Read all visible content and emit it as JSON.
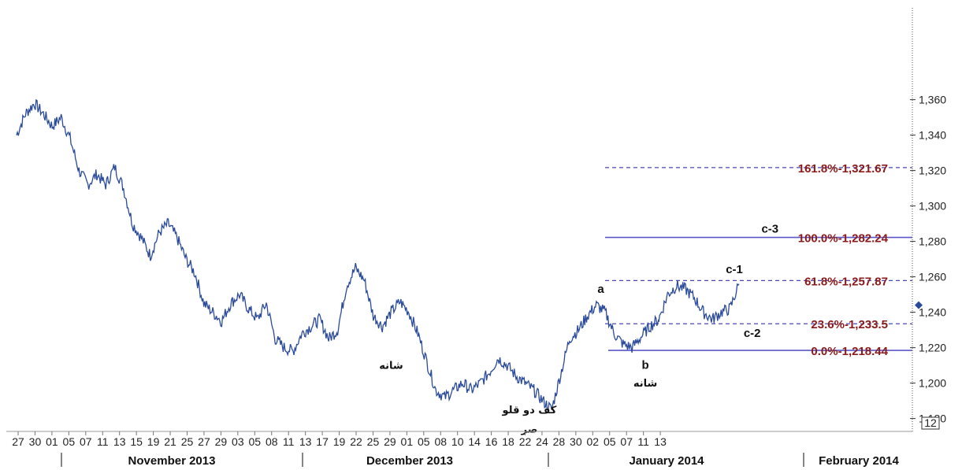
{
  "chart_data": {
    "type": "line",
    "ylim": [
      1170,
      1380
    ],
    "y_ticks": [
      1180,
      1200,
      1220,
      1240,
      1260,
      1280,
      1300,
      1320,
      1340,
      1360
    ],
    "y_tick_labels": [
      "1,180",
      "1,200",
      "1,220",
      "1,240",
      "1,260",
      "1,280",
      "1,300",
      "1,320",
      "1,340",
      "1,360"
    ],
    "current_price": 1244,
    "axis_box_label": "12",
    "x_tick_labels": [
      "27",
      "30",
      "01",
      "05",
      "07",
      "11",
      "13",
      "15",
      "19",
      "21",
      "25",
      "27",
      "29",
      "03",
      "05",
      "08",
      "11",
      "13",
      "17",
      "19",
      "22",
      "25",
      "29",
      "01",
      "05",
      "08",
      "10",
      "14",
      "16",
      "18",
      "22",
      "24",
      "28",
      "30",
      "02",
      "05",
      "07",
      "11",
      "13"
    ],
    "months": [
      "November 2013",
      "December 2013",
      "January 2014",
      "February 2014"
    ],
    "series": [
      {
        "x": [
          0,
          1,
          2,
          3,
          4,
          5,
          6,
          7,
          8,
          9,
          10,
          11,
          12,
          13,
          14,
          15,
          16,
          17,
          18,
          19,
          20,
          21,
          22,
          23,
          24,
          25,
          26,
          27,
          28,
          29,
          30,
          31,
          32,
          33,
          34,
          35,
          36,
          37,
          38,
          39,
          40,
          41,
          42,
          43,
          44,
          45,
          46,
          47,
          48,
          49,
          50,
          51,
          52,
          53,
          54,
          55,
          56,
          57,
          58,
          59,
          60,
          61,
          62,
          63,
          64,
          65,
          66,
          67,
          68,
          69,
          70,
          71,
          72
        ],
        "values": [
          1340,
          1352,
          1358,
          1352,
          1345,
          1350,
          1338,
          1320,
          1312,
          1318,
          1312,
          1322,
          1310,
          1290,
          1282,
          1272,
          1285,
          1290,
          1282,
          1270,
          1262,
          1245,
          1240,
          1235,
          1245,
          1250,
          1242,
          1236,
          1245,
          1225,
          1220,
          1218,
          1228,
          1232,
          1236,
          1225,
          1230,
          1255,
          1265,
          1258,
          1238,
          1232,
          1240,
          1246,
          1240,
          1228,
          1212,
          1196,
          1192,
          1196,
          1200,
          1196,
          1200,
          1206,
          1214,
          1210,
          1204,
          1200,
          1196,
          1190,
          1185,
          1205,
          1225,
          1230,
          1238,
          1244,
          1240,
          1228,
          1222,
          1220,
          1226,
          1232,
          1236
        ]
      },
      {
        "x": [
          72,
          73,
          74,
          75,
          76,
          77,
          78,
          79,
          80,
          81
        ],
        "values": [
          1236,
          1250,
          1255,
          1253,
          1248,
          1240,
          1236,
          1240,
          1242,
          1256
        ]
      }
    ],
    "fib_levels": [
      {
        "label": "161.8%-1,321.67",
        "value": 1321.67,
        "style": "dashed"
      },
      {
        "label": "100.0%-1,282.24",
        "value": 1282.24,
        "style": "solid"
      },
      {
        "label": "61.8%-1,257.87",
        "value": 1257.87,
        "style": "dashed"
      },
      {
        "label": "23.6%-1,233.5",
        "value": 1233.5,
        "style": "dashed"
      },
      {
        "label": "0.0%-1,218.44",
        "value": 1218.44,
        "style": "solid"
      }
    ],
    "wave_labels": [
      {
        "text": "a",
        "x": 65.5,
        "y": 1251
      },
      {
        "text": "b",
        "x": 70.5,
        "y": 1208
      },
      {
        "text": "c-1",
        "x": 76.5,
        "y": 1262
      },
      {
        "text": "c-2",
        "x": 78.5,
        "y": 1226
      },
      {
        "text": "c-3",
        "x": 80.5,
        "y": 1285
      }
    ],
    "annotations": [
      {
        "text": "شانه",
        "x": 42,
        "y": 1208
      },
      {
        "text": "شانه",
        "x": 70.5,
        "y": 1198
      },
      {
        "text": "کف دو قلو",
        "x": 57.5,
        "y": 1183
      },
      {
        "text": "صر",
        "x": 57.5,
        "y": 1172
      }
    ]
  }
}
